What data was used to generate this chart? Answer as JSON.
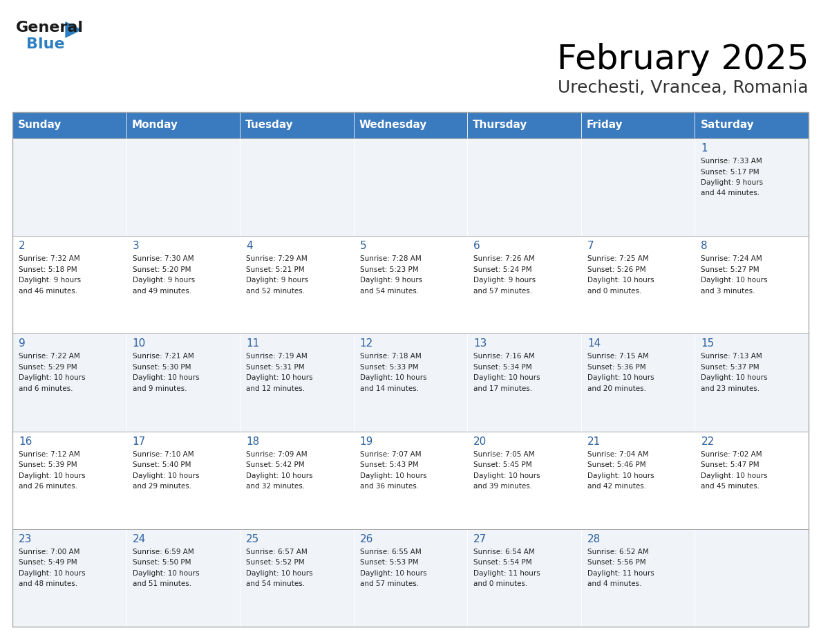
{
  "title": "February 2025",
  "subtitle": "Urechesti, Vrancea, Romania",
  "header_bg": "#3a7abf",
  "header_text": "#ffffff",
  "row_bg_odd": "#f0f4f8",
  "row_bg_even": "#ffffff",
  "day_names": [
    "Sunday",
    "Monday",
    "Tuesday",
    "Wednesday",
    "Thursday",
    "Friday",
    "Saturday"
  ],
  "weeks": [
    [
      null,
      null,
      null,
      null,
      null,
      null,
      1
    ],
    [
      2,
      3,
      4,
      5,
      6,
      7,
      8
    ],
    [
      9,
      10,
      11,
      12,
      13,
      14,
      15
    ],
    [
      16,
      17,
      18,
      19,
      20,
      21,
      22
    ],
    [
      23,
      24,
      25,
      26,
      27,
      28,
      null
    ]
  ],
  "cell_data": {
    "1": {
      "sunrise": "7:33 AM",
      "sunset": "5:17 PM",
      "daylight": "9 hours and 44 minutes."
    },
    "2": {
      "sunrise": "7:32 AM",
      "sunset": "5:18 PM",
      "daylight": "9 hours and 46 minutes."
    },
    "3": {
      "sunrise": "7:30 AM",
      "sunset": "5:20 PM",
      "daylight": "9 hours and 49 minutes."
    },
    "4": {
      "sunrise": "7:29 AM",
      "sunset": "5:21 PM",
      "daylight": "9 hours and 52 minutes."
    },
    "5": {
      "sunrise": "7:28 AM",
      "sunset": "5:23 PM",
      "daylight": "9 hours and 54 minutes."
    },
    "6": {
      "sunrise": "7:26 AM",
      "sunset": "5:24 PM",
      "daylight": "9 hours and 57 minutes."
    },
    "7": {
      "sunrise": "7:25 AM",
      "sunset": "5:26 PM",
      "daylight": "10 hours and 0 minutes."
    },
    "8": {
      "sunrise": "7:24 AM",
      "sunset": "5:27 PM",
      "daylight": "10 hours and 3 minutes."
    },
    "9": {
      "sunrise": "7:22 AM",
      "sunset": "5:29 PM",
      "daylight": "10 hours and 6 minutes."
    },
    "10": {
      "sunrise": "7:21 AM",
      "sunset": "5:30 PM",
      "daylight": "10 hours and 9 minutes."
    },
    "11": {
      "sunrise": "7:19 AM",
      "sunset": "5:31 PM",
      "daylight": "10 hours and 12 minutes."
    },
    "12": {
      "sunrise": "7:18 AM",
      "sunset": "5:33 PM",
      "daylight": "10 hours and 14 minutes."
    },
    "13": {
      "sunrise": "7:16 AM",
      "sunset": "5:34 PM",
      "daylight": "10 hours and 17 minutes."
    },
    "14": {
      "sunrise": "7:15 AM",
      "sunset": "5:36 PM",
      "daylight": "10 hours and 20 minutes."
    },
    "15": {
      "sunrise": "7:13 AM",
      "sunset": "5:37 PM",
      "daylight": "10 hours and 23 minutes."
    },
    "16": {
      "sunrise": "7:12 AM",
      "sunset": "5:39 PM",
      "daylight": "10 hours and 26 minutes."
    },
    "17": {
      "sunrise": "7:10 AM",
      "sunset": "5:40 PM",
      "daylight": "10 hours and 29 minutes."
    },
    "18": {
      "sunrise": "7:09 AM",
      "sunset": "5:42 PM",
      "daylight": "10 hours and 32 minutes."
    },
    "19": {
      "sunrise": "7:07 AM",
      "sunset": "5:43 PM",
      "daylight": "10 hours and 36 minutes."
    },
    "20": {
      "sunrise": "7:05 AM",
      "sunset": "5:45 PM",
      "daylight": "10 hours and 39 minutes."
    },
    "21": {
      "sunrise": "7:04 AM",
      "sunset": "5:46 PM",
      "daylight": "10 hours and 42 minutes."
    },
    "22": {
      "sunrise": "7:02 AM",
      "sunset": "5:47 PM",
      "daylight": "10 hours and 45 minutes."
    },
    "23": {
      "sunrise": "7:00 AM",
      "sunset": "5:49 PM",
      "daylight": "10 hours and 48 minutes."
    },
    "24": {
      "sunrise": "6:59 AM",
      "sunset": "5:50 PM",
      "daylight": "10 hours and 51 minutes."
    },
    "25": {
      "sunrise": "6:57 AM",
      "sunset": "5:52 PM",
      "daylight": "10 hours and 54 minutes."
    },
    "26": {
      "sunrise": "6:55 AM",
      "sunset": "5:53 PM",
      "daylight": "10 hours and 57 minutes."
    },
    "27": {
      "sunrise": "6:54 AM",
      "sunset": "5:54 PM",
      "daylight": "11 hours and 0 minutes."
    },
    "28": {
      "sunrise": "6:52 AM",
      "sunset": "5:56 PM",
      "daylight": "11 hours and 4 minutes."
    }
  },
  "logo_text_general": "General",
  "logo_text_blue": "Blue",
  "logo_color_general": "#1a1a1a",
  "logo_color_blue": "#2d7fc1",
  "logo_triangle_color": "#2d7fc1"
}
